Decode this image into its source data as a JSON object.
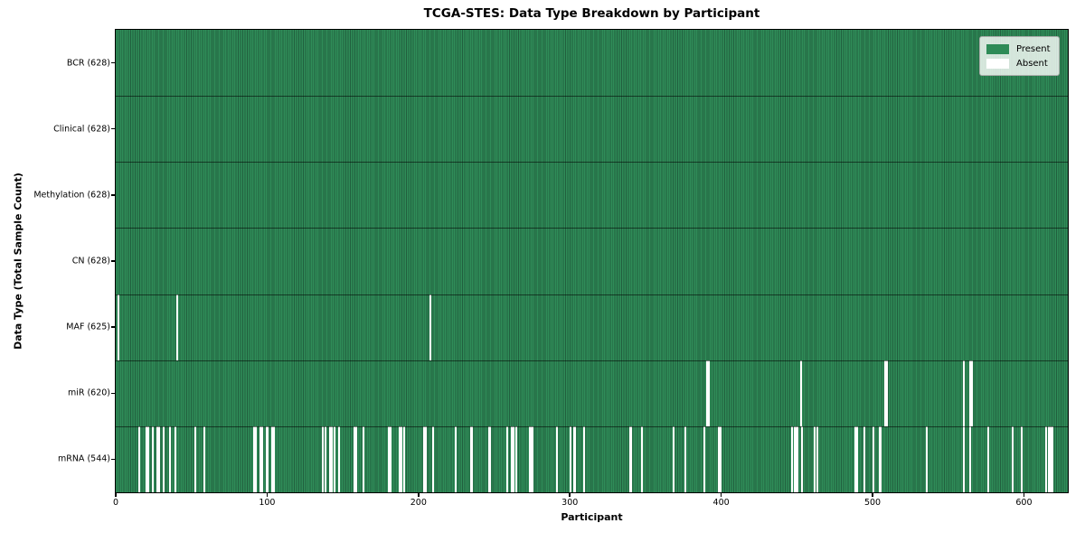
{
  "chart_data": {
    "type": "heatmap",
    "title": "TCGA-STES: Data Type Breakdown by Participant",
    "xlabel": "Participant",
    "ylabel": "Data Type (Total Sample Count)",
    "x_ticks": [
      0,
      100,
      200,
      300,
      400,
      500,
      600
    ],
    "xlim": [
      0,
      629
    ],
    "n_participants": 628,
    "colors": {
      "present": "#2e8b57",
      "present_edge": "#215f3e",
      "absent": "#ffffff"
    },
    "legend": {
      "position": "upper right",
      "entries": [
        {
          "label": "Present",
          "color": "#2e8b57"
        },
        {
          "label": "Absent",
          "color": "#ffffff"
        }
      ]
    },
    "rows": [
      {
        "label": "BCR (628)",
        "data_type": "BCR",
        "present_count": 628,
        "absent_participants": []
      },
      {
        "label": "Clinical (628)",
        "data_type": "Clinical",
        "present_count": 628,
        "absent_participants": []
      },
      {
        "label": "Methylation (628)",
        "data_type": "Methylation",
        "present_count": 628,
        "absent_participants": []
      },
      {
        "label": "CN (628)",
        "data_type": "CN",
        "present_count": 628,
        "absent_participants": []
      },
      {
        "label": "MAF (625)",
        "data_type": "MAF",
        "present_count": 625,
        "absent_participants": [
          1,
          40,
          207
        ]
      },
      {
        "label": "miR (620)",
        "data_type": "miR",
        "present_count": 620,
        "absent_participants": [
          390,
          391,
          452,
          508,
          509,
          560,
          564,
          565
        ]
      },
      {
        "label": "mRNA (544)",
        "data_type": "mRNA",
        "present_count": 544,
        "absent_participants": [
          15,
          20,
          21,
          24,
          27,
          28,
          31,
          35,
          39,
          52,
          58,
          91,
          92,
          95,
          96,
          99,
          100,
          103,
          104,
          136,
          138,
          141,
          142,
          144,
          147,
          157,
          158,
          163,
          180,
          181,
          187,
          188,
          190,
          203,
          204,
          209,
          224,
          234,
          235,
          246,
          247,
          258,
          261,
          262,
          264,
          273,
          274,
          275,
          291,
          300,
          302,
          303,
          309,
          339,
          340,
          347,
          368,
          376,
          388,
          398,
          399,
          446,
          448,
          449,
          450,
          453,
          461,
          463,
          488,
          489,
          494,
          500,
          504,
          505,
          535,
          560,
          564,
          576,
          592,
          598,
          614,
          616,
          617,
          618
        ]
      }
    ]
  }
}
